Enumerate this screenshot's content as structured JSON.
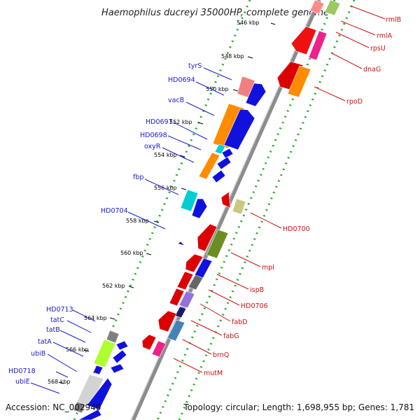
{
  "title": "Haemophilus ducreyi 35000HP, complete genome",
  "footer": {
    "accession": "Accession: NC_002940",
    "summary": "Topology: circular; Length: 1,698,955 bp; Genes: 1,781"
  },
  "colors": {
    "backbone": "#8a8a8a",
    "tick": "#22aa22",
    "left_label": "#1a1acc",
    "right_label": "#cc1111"
  },
  "ticks": [
    "546 kbp",
    "548 kbp",
    "550 kbp",
    "552 kbp",
    "554 kbp",
    "556 kbp",
    "558 kbp",
    "560 kbp",
    "562 kbp",
    "564 kbp",
    "566 kbp",
    "568 kbp"
  ],
  "left_labels": [
    "tyrS",
    "HD0694",
    "vacB",
    "HD0697",
    "HD0698",
    "oxyR",
    "fbp",
    "HD0704",
    "HD0713",
    "tatC",
    "tatB",
    "tatA",
    "ubiB",
    "HD0718",
    "ubiE"
  ],
  "right_labels": [
    "rmlB",
    "rmlA",
    "rpsU",
    "dnaG",
    "rpoD",
    "HD0700",
    "mpl",
    "ispB",
    "HD0706",
    "fabD",
    "fabG",
    "brnQ",
    "mutM"
  ]
}
